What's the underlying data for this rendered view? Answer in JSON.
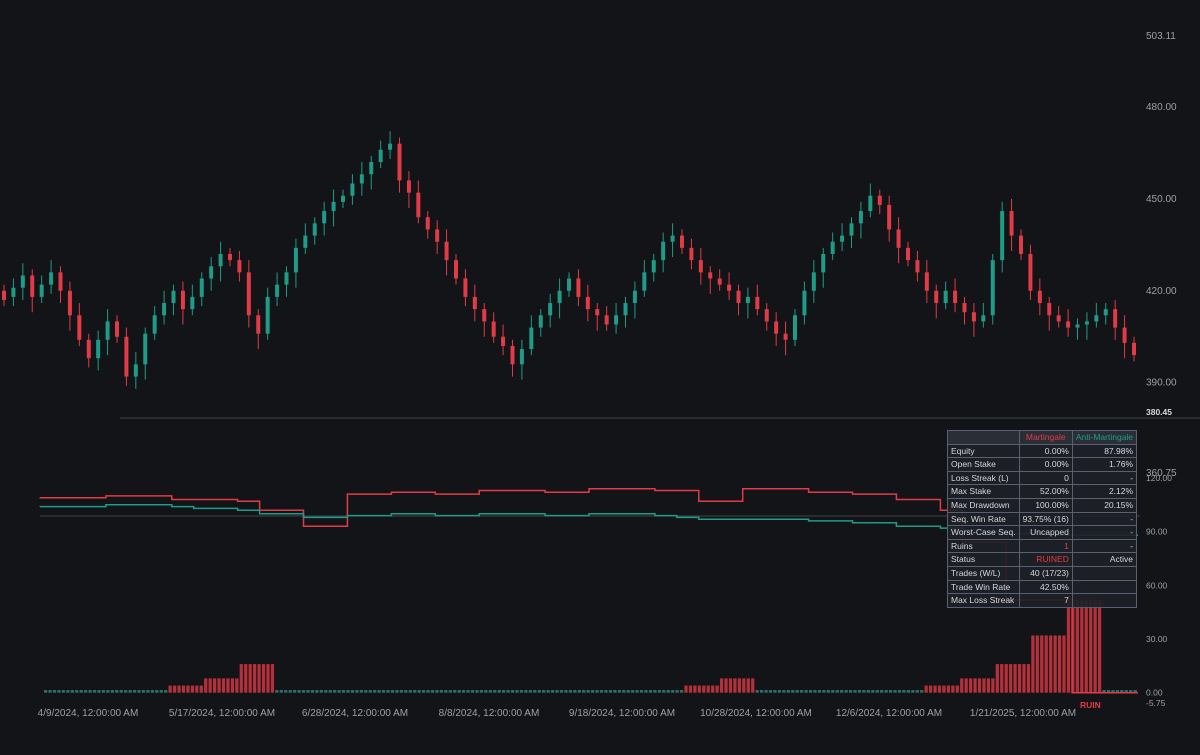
{
  "colors": {
    "up": "#1f9c87",
    "down": "#e23b47",
    "background": "#131417",
    "axis_text": "#9aa0a6",
    "grid": "#3a3d44"
  },
  "axes": {
    "price_ticks": [
      "503.11",
      "480.00",
      "450.00",
      "420.00",
      "390.00"
    ],
    "price_low_label": "380.45",
    "price_bottom_label": "360.75",
    "equity_ticks": [
      "120.00",
      "90.00",
      "60.00",
      "30.00",
      "0.00",
      "-5.75"
    ],
    "x_ticks": [
      "4/9/2024, 12:00:00 AM",
      "5/17/2024, 12:00:00 AM",
      "6/28/2024, 12:00:00 AM",
      "8/8/2024, 12:00:00 AM",
      "9/18/2024, 12:00:00 AM",
      "10/28/2024, 12:00:00 AM",
      "12/6/2024, 12:00:00 AM",
      "1/21/2025, 12:00:00 AM"
    ],
    "ruin_marker": "RUIN"
  },
  "stats_table": {
    "headers": [
      "",
      "Martingale",
      "Anti-Martingale"
    ],
    "rows": [
      [
        "Equity",
        "0.00%",
        "87.98%"
      ],
      [
        "Open Stake",
        "0.00%",
        "1.76%"
      ],
      [
        "Loss Streak (L)",
        "0",
        "-"
      ],
      [
        "Max Stake",
        "52.00%",
        "2.12%"
      ],
      [
        "Max Drawdown",
        "100.00%",
        "20.15%"
      ],
      [
        "Seq. Win Rate",
        "93.75% (16)",
        "-"
      ],
      [
        "Worst-Case Seq.",
        "Uncapped",
        "-"
      ],
      [
        "Ruins",
        "1",
        "-"
      ],
      [
        "Status",
        "RUINED",
        "Active"
      ],
      [
        "Trades (W/L)",
        "40 (17/23)",
        ""
      ],
      [
        "Trade Win Rate",
        "42.50%",
        ""
      ],
      [
        "Max Loss Streak",
        "7",
        ""
      ]
    ]
  },
  "chart_data": [
    {
      "type": "candlestick",
      "title": "",
      "x_range": [
        "4/1/2024",
        "3/6/2025"
      ],
      "ylim": [
        380.45,
        503.11
      ],
      "close_approx": [
        417,
        421,
        425,
        418,
        422,
        426,
        420,
        412,
        404,
        398,
        404,
        410,
        405,
        392,
        396,
        406,
        412,
        416,
        420,
        414,
        418,
        424,
        428,
        432,
        430,
        426,
        412,
        406,
        418,
        422,
        426,
        434,
        438,
        442,
        446,
        449,
        451,
        455,
        458,
        462,
        466,
        468,
        456,
        452,
        444,
        440,
        436,
        430,
        424,
        418,
        414,
        410,
        405,
        402,
        396,
        401,
        408,
        412,
        416,
        420,
        424,
        418,
        414,
        412,
        409,
        412,
        416,
        420,
        426,
        430,
        436,
        438,
        434,
        430,
        426,
        424,
        422,
        420,
        416,
        418,
        414,
        410,
        406,
        404,
        412,
        420,
        426,
        432,
        436,
        438,
        442,
        446,
        451,
        448,
        440,
        434,
        430,
        426,
        420,
        416,
        420,
        416,
        413,
        410,
        412,
        430,
        446,
        438,
        432,
        420,
        416,
        412,
        410,
        408,
        409,
        410,
        412,
        414,
        408,
        403,
        399
      ],
      "open_approx": [
        420,
        418,
        421,
        425,
        418,
        422,
        426,
        420,
        412,
        404,
        398,
        404,
        410,
        405,
        392,
        396,
        406,
        412,
        416,
        420,
        414,
        418,
        424,
        428,
        432,
        430,
        426,
        412,
        406,
        418,
        422,
        426,
        434,
        438,
        442,
        446,
        449,
        451,
        455,
        458,
        462,
        466,
        468,
        456,
        452,
        444,
        440,
        436,
        430,
        424,
        418,
        414,
        410,
        405,
        402,
        396,
        401,
        408,
        412,
        416,
        420,
        424,
        418,
        414,
        412,
        409,
        412,
        416,
        420,
        426,
        430,
        436,
        438,
        434,
        430,
        426,
        424,
        422,
        420,
        416,
        418,
        414,
        410,
        406,
        404,
        412,
        420,
        426,
        432,
        436,
        438,
        442,
        446,
        451,
        448,
        440,
        434,
        430,
        426,
        420,
        416,
        420,
        416,
        413,
        410,
        412,
        430,
        446,
        438,
        432,
        420,
        416,
        412,
        410,
        408,
        409,
        410,
        412,
        414,
        408,
        403
      ]
    },
    {
      "type": "line",
      "title": "",
      "ylim": [
        -5.75,
        120
      ],
      "series": [
        {
          "name": "Martingale",
          "color": "#e23b47",
          "y": [
            109,
            109,
            109,
            110,
            110,
            110,
            108,
            108,
            108,
            107,
            102,
            102,
            93,
            93,
            111,
            111,
            112,
            112,
            111,
            111,
            113,
            113,
            113,
            112,
            112,
            114,
            114,
            114,
            113,
            113,
            107,
            107,
            114,
            114,
            114,
            112,
            112,
            111,
            111,
            108,
            108,
            102,
            84,
            84,
            52,
            52,
            52,
            0,
            0,
            0
          ]
        },
        {
          "name": "Anti-Martingale",
          "color": "#1f9c87",
          "y": [
            104,
            104,
            104,
            105,
            105,
            105,
            104,
            103,
            103,
            102,
            100,
            100,
            98,
            98,
            99,
            99,
            100,
            100,
            99,
            99,
            100,
            100,
            100,
            99,
            99,
            100,
            100,
            100,
            99,
            98,
            97,
            97,
            97,
            97,
            97,
            96,
            96,
            95,
            95,
            93,
            93,
            92,
            91,
            90,
            89,
            89,
            88,
            88,
            88,
            88
          ]
        }
      ]
    },
    {
      "type": "bar",
      "title": "",
      "series_name": "Martingale stake",
      "values_approx": [
        0,
        0,
        0,
        0,
        0,
        0,
        0,
        0,
        0,
        0,
        0,
        0,
        0,
        0,
        0,
        0,
        0,
        0,
        0,
        0,
        0,
        0,
        0,
        0,
        0,
        0,
        0,
        0,
        4,
        4,
        4,
        4,
        4,
        4,
        4,
        4,
        8,
        8,
        8,
        8,
        8,
        8,
        8,
        8,
        16,
        16,
        16,
        16,
        16,
        16,
        16,
        16,
        0,
        0,
        0,
        0,
        0,
        0,
        0,
        0,
        0,
        0,
        0,
        0,
        0,
        0,
        0,
        0,
        0,
        0,
        0,
        0,
        0,
        0,
        0,
        0,
        0,
        0,
        0,
        0,
        0,
        0,
        0,
        0,
        0,
        0,
        0,
        0,
        0,
        0,
        0,
        0,
        0,
        0,
        0,
        0,
        0,
        0,
        0,
        0,
        0,
        0,
        0,
        0,
        0,
        0,
        0,
        0,
        0,
        0,
        0,
        0,
        0,
        0,
        0,
        0,
        0,
        0,
        0,
        0,
        0,
        0,
        0,
        0,
        0,
        0,
        0,
        0,
        0,
        0,
        0,
        0,
        0,
        0,
        0,
        0,
        0,
        0,
        0,
        0,
        0,
        0,
        0,
        0,
        4,
        4,
        4,
        4,
        4,
        4,
        4,
        4,
        8,
        8,
        8,
        8,
        8,
        8,
        8,
        8,
        0,
        0,
        0,
        0,
        0,
        0,
        0,
        0,
        0,
        0,
        0,
        0,
        0,
        0,
        0,
        0,
        0,
        0,
        0,
        0,
        0,
        0,
        0,
        0,
        0,
        0,
        0,
        0,
        0,
        0,
        0,
        0,
        0,
        0,
        0,
        0,
        0,
        0,
        4,
        4,
        4,
        4,
        4,
        4,
        4,
        4,
        8,
        8,
        8,
        8,
        8,
        8,
        8,
        8,
        16,
        16,
        16,
        16,
        16,
        16,
        16,
        16,
        32,
        32,
        32,
        32,
        32,
        32,
        32,
        32,
        52,
        52,
        52,
        52,
        52,
        52,
        52,
        52,
        0,
        0,
        0,
        0,
        0,
        0,
        0,
        0
      ]
    }
  ]
}
